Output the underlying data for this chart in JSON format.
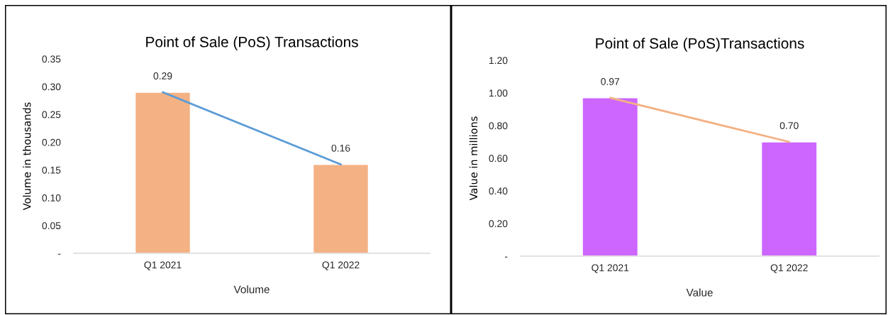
{
  "chart_data": [
    {
      "type": "bar",
      "title": "Point of Sale (PoS) Transactions",
      "xlabel": "Volume",
      "ylabel": "Volume in thousands",
      "categories": [
        "Q1 2021",
        "Q1 2022"
      ],
      "series": [
        {
          "color": "#f4b183",
          "values": [
            0.29,
            0.16
          ],
          "value_labels": [
            "0.29",
            "0.16"
          ]
        },
        {
          "type": "line",
          "color": "#5b9bd5",
          "values": [
            0.29,
            0.16
          ]
        }
      ],
      "ylim": [
        0,
        0.35
      ],
      "yticks": [
        {
          "value": 0,
          "label": "-"
        },
        {
          "value": 0.05,
          "label": "0.05"
        },
        {
          "value": 0.1,
          "label": "0.10"
        },
        {
          "value": 0.15,
          "label": "0.15"
        },
        {
          "value": 0.2,
          "label": "0.20"
        },
        {
          "value": 0.25,
          "label": "0.25"
        },
        {
          "value": 0.3,
          "label": "0.30"
        },
        {
          "value": 0.35,
          "label": "0.35"
        }
      ]
    },
    {
      "type": "bar",
      "title": "Point of Sale (PoS)Transactions",
      "xlabel": "Value",
      "ylabel": "Value in millions",
      "categories": [
        "Q1 2021",
        "Q1 2022"
      ],
      "series": [
        {
          "color": "#cc66ff",
          "values": [
            0.97,
            0.7
          ],
          "value_labels": [
            "0.97",
            "0.70"
          ]
        },
        {
          "type": "line",
          "color": "#f4b183",
          "values": [
            0.97,
            0.7
          ]
        }
      ],
      "ylim": [
        0,
        1.2
      ],
      "yticks": [
        {
          "value": 0,
          "label": "-"
        },
        {
          "value": 0.2,
          "label": "0.20"
        },
        {
          "value": 0.4,
          "label": "0.40"
        },
        {
          "value": 0.6,
          "label": "0.60"
        },
        {
          "value": 0.8,
          "label": "0.80"
        },
        {
          "value": 1.0,
          "label": "1.00"
        },
        {
          "value": 1.2,
          "label": "1.20"
        }
      ]
    }
  ]
}
